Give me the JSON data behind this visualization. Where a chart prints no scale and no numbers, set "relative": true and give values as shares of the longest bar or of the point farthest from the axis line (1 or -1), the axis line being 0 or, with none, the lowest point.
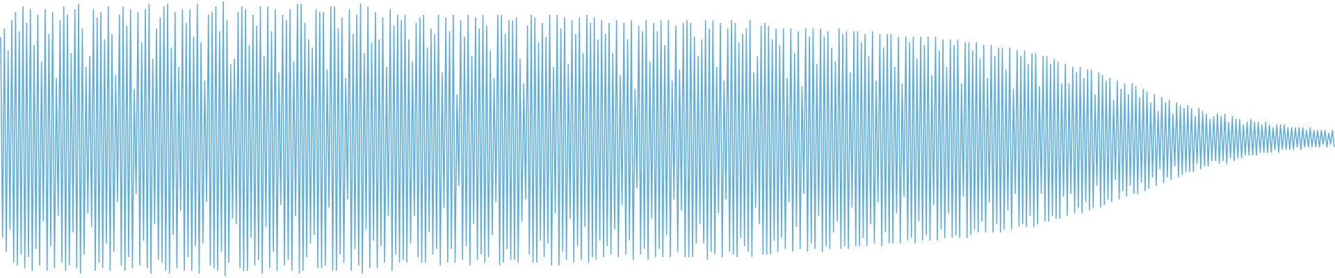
{
  "chart_data": {
    "type": "line",
    "relative": true,
    "color": "#5dade2",
    "categories": [
      null,
      null,
      null,
      null,
      null,
      null,
      null,
      null,
      null,
      null,
      null,
      null,
      null,
      null,
      null,
      null,
      null,
      null,
      null,
      null,
      null,
      null,
      null,
      null,
      null,
      null,
      null,
      null,
      null,
      null,
      null,
      null,
      null,
      null,
      null,
      null,
      null,
      null,
      null,
      null,
      null,
      null,
      null,
      null,
      null,
      null,
      null,
      null,
      null,
      null,
      null,
      null,
      null,
      null,
      null,
      null,
      null,
      null,
      null,
      null,
      null,
      null,
      null,
      null,
      null,
      null,
      null,
      null,
      null,
      null,
      null,
      null,
      null,
      null,
      null,
      null,
      null,
      null,
      null,
      null,
      null,
      null,
      null,
      null,
      null,
      null,
      null,
      null,
      null,
      null,
      null,
      null,
      null,
      null,
      null,
      null,
      null,
      null,
      null,
      null,
      null,
      null,
      null,
      null,
      null,
      null,
      null,
      null,
      null,
      null,
      null,
      null,
      null,
      null,
      null,
      null,
      null,
      null,
      null,
      null,
      null,
      null,
      null,
      null,
      null,
      null,
      null,
      null,
      null,
      null,
      null,
      null,
      null,
      null,
      null,
      null,
      null,
      null,
      null,
      null,
      null,
      null,
      null,
      null,
      null,
      null,
      null,
      null,
      null,
      null,
      null,
      null,
      null,
      null,
      null,
      null,
      null,
      null,
      null,
      null,
      null,
      null,
      null,
      null,
      null,
      null,
      null,
      null,
      null,
      null,
      null,
      null,
      null,
      null,
      null,
      null,
      null,
      null,
      null,
      null,
      null,
      null,
      null,
      null,
      null,
      null,
      null,
      null,
      null,
      null,
      null,
      null,
      null,
      null,
      null,
      null,
      null,
      null,
      null,
      null,
      null,
      null,
      null,
      null,
      null,
      null,
      null,
      null,
      null,
      null,
      null,
      null,
      null,
      null,
      null,
      null,
      null,
      null,
      null,
      null,
      null,
      null,
      null,
      null,
      null,
      null,
      null,
      null,
      null,
      null,
      null,
      null,
      null,
      null,
      null,
      null,
      null,
      null,
      null,
      null,
      null,
      null,
      null,
      null,
      null,
      null,
      null,
      null,
      null,
      null,
      null,
      null,
      null,
      null,
      null,
      null,
      null,
      null,
      null,
      null,
      null,
      null,
      null,
      null,
      null,
      null,
      null,
      null,
      null,
      null,
      null,
      null,
      null,
      null,
      null,
      null,
      null,
      null,
      null,
      null,
      null,
      null,
      null,
      null,
      null,
      null,
      null,
      null,
      null,
      null,
      null,
      null,
      null,
      null,
      null,
      null,
      null,
      null,
      null,
      null,
      null,
      null,
      null,
      null,
      null,
      null,
      null,
      null,
      null,
      null,
      null,
      null,
      null,
      null,
      null,
      null,
      null,
      null,
      null,
      null,
      null,
      null,
      null,
      null,
      null,
      null,
      null,
      null,
      null,
      null,
      null,
      null,
      null,
      null,
      null,
      null,
      null,
      null,
      null,
      null,
      null,
      null,
      null,
      null,
      null,
      null,
      null,
      null,
      null,
      null,
      null,
      null,
      null,
      null,
      null,
      null,
      null,
      null,
      null,
      null,
      null,
      null,
      null,
      null,
      null,
      null,
      null,
      null,
      null,
      null,
      null,
      null,
      null,
      null,
      null,
      null,
      null,
      null,
      null,
      null,
      null,
      null,
      null,
      null,
      null,
      null,
      null,
      null,
      null,
      null,
      null,
      null,
      null,
      null,
      null,
      null,
      null,
      null,
      null,
      null,
      null,
      null,
      null,
      null,
      null,
      null,
      null,
      null,
      null,
      null,
      null,
      null,
      null,
      null,
      null,
      null,
      null,
      null,
      null,
      null,
      null,
      null,
      null,
      null,
      null,
      null,
      null,
      null,
      null,
      null,
      null,
      null,
      null,
      null,
      null,
      null,
      null,
      null,
      null,
      null,
      null,
      null,
      null,
      null,
      null,
      null,
      null,
      null,
      null,
      null,
      null,
      null,
      null,
      null,
      null,
      null,
      null,
      null,
      null,
      null,
      null,
      null,
      null,
      null,
      null,
      null,
      null,
      null,
      null,
      null,
      null,
      null,
      null,
      null,
      null,
      null,
      null,
      null,
      null,
      null,
      null,
      null,
      null,
      null,
      null,
      null,
      null,
      null,
      null,
      null,
      null,
      null,
      null,
      null,
      null,
      null,
      null,
      null,
      null,
      null,
      null,
      null,
      null,
      null,
      null,
      null,
      null,
      null,
      null,
      null,
      null,
      null,
      null,
      null,
      null,
      null,
      null,
      null,
      null,
      null,
      null,
      null,
      null,
      null,
      null,
      null,
      null,
      null,
      null,
      null,
      null,
      null,
      null,
      null,
      null,
      null,
      null,
      null,
      null,
      null,
      null,
      null,
      null,
      null,
      null,
      null,
      null,
      null,
      null,
      null,
      null,
      null,
      null,
      null,
      null,
      null,
      null,
      null,
      null,
      null,
      null,
      null,
      null,
      null,
      null,
      null,
      null,
      null,
      null,
      null,
      null,
      null,
      null,
      null,
      null,
      null,
      null,
      null,
      null,
      null,
      null,
      null,
      null,
      null,
      null,
      null,
      null,
      null,
      null,
      null,
      null,
      null,
      null,
      null,
      null,
      null,
      null,
      null,
      null,
      null,
      null,
      null,
      null,
      null,
      null,
      null,
      null,
      null,
      null,
      null,
      null,
      null,
      null,
      null,
      null,
      null,
      null,
      null,
      null,
      null,
      null,
      null,
      null,
      null,
      null,
      null,
      null,
      null,
      null,
      null,
      null,
      null,
      null,
      null,
      null,
      null,
      null,
      null,
      null,
      null,
      null,
      null,
      null,
      null,
      null,
      null,
      null,
      null,
      null,
      null,
      null,
      null,
      null,
      null,
      null,
      null,
      null,
      null,
      null,
      null,
      null,
      null,
      null,
      null,
      null,
      null,
      null,
      null,
      null,
      null,
      null,
      null,
      null,
      null,
      null,
      null,
      null,
      null,
      null,
      null,
      null,
      null,
      null,
      null,
      null,
      null,
      null,
      null,
      null,
      null,
      null,
      null,
      null,
      null,
      null,
      null,
      null,
      null,
      null,
      null,
      null,
      null,
      null,
      null,
      null,
      null,
      null,
      null,
      null,
      null,
      null,
      null,
      null,
      null,
      null,
      null,
      null,
      null,
      null,
      null
    ],
    "values": [
      0.87,
      0.14,
      0.9,
      0.09,
      0.82,
      0.17,
      0.93,
      0.05,
      0.96,
      0.04,
      0.89,
      0.08,
      0.98,
      0.03,
      0.92,
      0.07,
      0.97,
      0.02,
      0.84,
      0.1,
      0.95,
      0.04,
      0.78,
      0.2,
      0.97,
      0.02,
      0.88,
      0.11,
      0.96,
      0.03,
      0.72,
      0.22,
      0.93,
      0.05,
      0.98,
      0.02,
      0.95,
      0.04,
      0.81,
      0.16,
      0.97,
      0.03,
      0.99,
      0.01,
      0.9,
      0.08,
      0.76,
      0.23,
      0.8,
      0.18,
      0.97,
      0.02,
      0.94,
      0.05,
      0.96,
      0.03,
      0.86,
      0.12,
      0.98,
      0.02,
      0.88,
      0.09,
      0.73,
      0.27,
      0.95,
      0.04,
      0.98,
      0.02,
      0.91,
      0.07,
      0.97,
      0.03,
      0.68,
      0.3,
      0.96,
      0.04,
      0.85,
      0.13,
      0.97,
      0.03,
      0.99,
      0.01,
      0.79,
      0.19,
      0.9,
      0.06,
      0.94,
      0.05,
      0.98,
      0.02,
      0.99,
      0.01,
      0.83,
      0.15,
      0.96,
      0.03,
      0.76,
      0.24,
      0.97,
      0.02,
      0.92,
      0.07,
      0.97,
      0.02,
      0.87,
      0.11,
      0.99,
      0.01,
      0.85,
      0.12,
      0.71,
      0.27,
      0.95,
      0.04,
      0.96,
      0.03,
      0.98,
      0.02,
      0.89,
      0.09,
      1.0,
      0.0,
      0.93,
      0.05,
      0.77,
      0.21,
      0.79,
      0.19,
      0.96,
      0.03,
      0.98,
      0.02,
      0.97,
      0.02,
      0.84,
      0.14,
      0.95,
      0.04,
      0.91,
      0.06,
      0.98,
      0.01,
      0.8,
      0.18,
      0.98,
      0.03,
      0.89,
      0.09,
      0.97,
      0.02,
      0.74,
      0.26,
      0.95,
      0.04,
      0.93,
      0.06,
      0.97,
      0.02,
      0.78,
      0.22,
      0.99,
      0.01,
      0.99,
      0.02,
      0.92,
      0.07,
      0.86,
      0.12,
      0.83,
      0.15,
      0.97,
      0.03,
      0.96,
      0.03,
      0.96,
      0.04,
      0.75,
      0.25,
      0.98,
      0.02,
      0.98,
      0.02,
      0.9,
      0.08,
      0.94,
      0.05,
      0.72,
      0.28,
      0.97,
      0.02,
      0.88,
      0.1,
      0.95,
      0.04,
      0.99,
      0.01,
      0.81,
      0.17,
      0.98,
      0.03,
      0.85,
      0.13,
      0.96,
      0.03,
      0.86,
      0.11,
      0.94,
      0.05,
      0.76,
      0.22,
      0.97,
      0.02,
      0.91,
      0.08,
      0.95,
      0.05,
      0.93,
      0.06,
      0.95,
      0.05,
      0.86,
      0.12,
      0.78,
      0.22,
      0.92,
      0.07,
      0.94,
      0.05,
      0.95,
      0.05,
      0.83,
      0.16,
      0.9,
      0.08,
      0.88,
      0.1,
      0.95,
      0.04,
      0.74,
      0.25,
      0.94,
      0.05,
      0.89,
      0.1,
      0.95,
      0.05,
      0.66,
      0.33,
      0.93,
      0.06,
      0.87,
      0.11,
      0.95,
      0.04,
      0.8,
      0.19,
      0.94,
      0.06,
      0.9,
      0.08,
      0.95,
      0.05,
      0.91,
      0.07,
      0.82,
      0.15,
      0.72,
      0.27,
      0.95,
      0.04,
      0.95,
      0.05,
      0.88,
      0.1,
      0.93,
      0.06,
      0.93,
      0.06,
      0.94,
      0.05,
      0.79,
      0.2,
      0.7,
      0.28,
      0.91,
      0.08,
      0.95,
      0.05,
      0.94,
      0.05,
      0.85,
      0.13,
      0.92,
      0.07,
      0.87,
      0.12,
      0.95,
      0.04,
      0.76,
      0.23,
      0.95,
      0.04,
      0.9,
      0.09,
      0.94,
      0.06,
      0.77,
      0.21,
      0.93,
      0.05,
      0.88,
      0.11,
      0.94,
      0.06,
      0.81,
      0.18,
      0.95,
      0.05,
      0.92,
      0.07,
      0.94,
      0.06,
      0.86,
      0.13,
      0.93,
      0.07,
      0.88,
      0.11,
      0.92,
      0.08,
      0.81,
      0.17,
      0.93,
      0.07,
      0.73,
      0.26,
      0.92,
      0.08,
      0.86,
      0.13,
      0.93,
      0.06,
      0.68,
      0.32,
      0.91,
      0.08,
      0.89,
      0.1,
      0.93,
      0.06,
      0.78,
      0.21,
      0.92,
      0.07,
      0.89,
      0.1,
      0.93,
      0.07,
      0.84,
      0.15,
      0.93,
      0.07,
      0.71,
      0.28,
      0.91,
      0.09,
      0.75,
      0.24,
      0.92,
      0.07,
      0.93,
      0.07,
      0.92,
      0.07,
      0.87,
      0.12,
      0.8,
      0.19,
      0.86,
      0.12,
      0.93,
      0.06,
      0.9,
      0.09,
      0.93,
      0.08,
      0.76,
      0.23,
      0.92,
      0.07,
      0.71,
      0.28,
      0.9,
      0.09,
      0.93,
      0.08,
      0.92,
      0.07,
      0.85,
      0.14,
      0.88,
      0.11,
      0.9,
      0.09,
      0.93,
      0.07,
      0.74,
      0.25,
      0.8,
      0.19,
      0.91,
      0.08,
      0.92,
      0.08,
      0.91,
      0.08,
      0.86,
      0.13,
      0.9,
      0.09,
      0.84,
      0.14,
      0.9,
      0.1,
      0.72,
      0.27,
      0.9,
      0.09,
      0.81,
      0.18,
      0.89,
      0.1,
      0.69,
      0.3,
      0.9,
      0.09,
      0.87,
      0.12,
      0.9,
      0.1,
      0.77,
      0.22,
      0.9,
      0.09,
      0.87,
      0.11,
      0.89,
      0.1,
      0.83,
      0.16,
      0.78,
      0.2,
      0.9,
      0.1,
      0.88,
      0.11,
      0.89,
      0.1,
      0.74,
      0.25,
      0.89,
      0.11,
      0.89,
      0.11,
      0.85,
      0.14,
      0.88,
      0.11,
      0.8,
      0.19,
      0.89,
      0.12,
      0.71,
      0.27,
      0.88,
      0.11,
      0.83,
      0.16,
      0.88,
      0.12,
      0.88,
      0.12,
      0.76,
      0.23,
      0.87,
      0.12,
      0.7,
      0.29,
      0.87,
      0.13,
      0.85,
      0.14,
      0.87,
      0.12,
      0.79,
      0.2,
      0.87,
      0.13,
      0.84,
      0.15,
      0.87,
      0.13,
      0.73,
      0.26,
      0.87,
      0.13,
      0.82,
      0.17,
      0.86,
      0.14,
      0.76,
      0.23,
      0.86,
      0.14,
      0.84,
      0.15,
      0.86,
      0.14,
      0.7,
      0.29,
      0.85,
      0.14,
      0.85,
      0.15,
      0.82,
      0.17,
      0.85,
      0.16,
      0.79,
      0.2,
      0.84,
      0.16,
      0.72,
      0.27,
      0.84,
      0.16,
      0.8,
      0.19,
      0.83,
      0.16,
      0.83,
      0.17,
      0.75,
      0.24,
      0.83,
      0.17,
      0.68,
      0.3,
      0.82,
      0.18,
      0.8,
      0.19,
      0.82,
      0.18,
      0.77,
      0.22,
      0.81,
      0.18,
      0.81,
      0.19,
      0.69,
      0.3,
      0.8,
      0.2,
      0.8,
      0.2,
      0.77,
      0.22,
      0.79,
      0.21,
      0.78,
      0.21,
      0.7,
      0.29,
      0.77,
      0.22,
      0.7,
      0.3,
      0.76,
      0.23,
      0.74,
      0.25,
      0.76,
      0.23,
      0.72,
      0.27,
      0.75,
      0.24,
      0.75,
      0.25,
      0.66,
      0.33,
      0.74,
      0.25,
      0.73,
      0.26,
      0.71,
      0.28,
      0.72,
      0.27,
      0.64,
      0.35,
      0.71,
      0.28,
      0.68,
      0.31,
      0.7,
      0.29,
      0.66,
      0.33,
      0.7,
      0.3,
      0.69,
      0.3,
      0.65,
      0.34,
      0.68,
      0.31,
      0.67,
      0.32,
      0.63,
      0.36,
      0.66,
      0.33,
      0.6,
      0.39,
      0.65,
      0.34,
      0.63,
      0.36,
      0.64,
      0.35,
      0.59,
      0.4,
      0.63,
      0.36,
      0.62,
      0.37,
      0.61,
      0.38,
      0.62,
      0.38,
      0.61,
      0.38,
      0.58,
      0.41,
      0.61,
      0.39,
      0.6,
      0.4,
      0.59,
      0.4,
      0.57,
      0.42,
      0.58,
      0.42,
      0.59,
      0.41,
      0.58,
      0.42,
      0.59,
      0.41,
      0.56,
      0.43,
      0.58,
      0.42,
      0.57,
      0.43,
      0.57,
      0.43,
      0.55,
      0.44,
      0.56,
      0.44,
      0.57,
      0.44,
      0.56,
      0.44,
      0.56,
      0.45,
      0.55,
      0.45,
      0.56,
      0.45,
      0.55,
      0.45,
      0.54,
      0.46,
      0.55,
      0.45,
      0.55,
      0.46,
      0.55,
      0.46,
      0.54,
      0.46,
      0.54,
      0.46,
      0.54,
      0.47,
      0.54,
      0.46,
      0.54,
      0.47,
      0.53,
      0.47,
      0.54,
      0.47,
      0.53,
      0.47,
      0.53,
      0.47,
      0.53,
      0.48,
      0.53,
      0.47,
      0.52,
      0.48,
      0.53,
      0.47
    ]
  }
}
